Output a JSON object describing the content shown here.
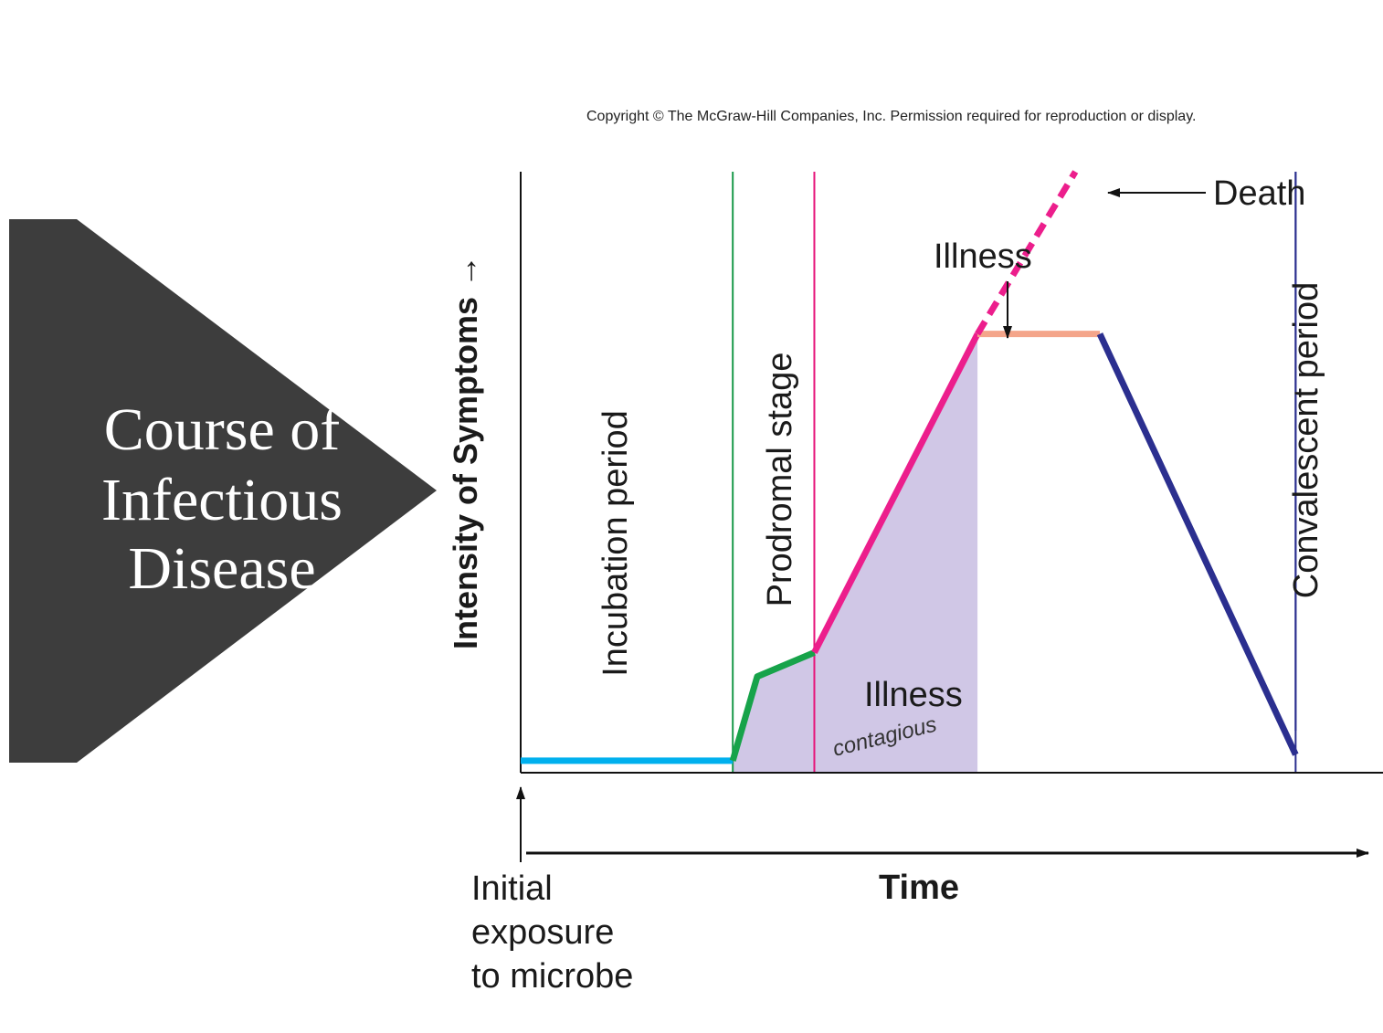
{
  "slide": {
    "title_lines": [
      "Course of",
      "Infectious",
      "Disease"
    ],
    "panel_color": "#3d3d3d"
  },
  "copyright": "Copyright © The McGraw-Hill Companies, Inc. Permission required for reproduction or display.",
  "chart_data": {
    "type": "line",
    "title": "",
    "xlabel": "Time",
    "ylabel": "Intensity of Symptoms →",
    "x_origin_label": "Initial exposure to microbe",
    "x_origin_lines": [
      "Initial",
      "exposure",
      "to microbe"
    ],
    "x_range": [
      0,
      100
    ],
    "y_range": [
      0,
      100
    ],
    "grid": false,
    "stages": [
      {
        "name": "Incubation period",
        "x_start": 0,
        "x_end": 26,
        "boundary_color": "#1ea0dc"
      },
      {
        "name": "Prodromal stage",
        "x_start": 26,
        "x_end": 36,
        "boundary_color": "#1a9a4a"
      },
      {
        "name": "Illness",
        "x_start": 36,
        "x_end": 71,
        "boundary_color": "#e6157a"
      },
      {
        "name": "Convalescent period",
        "x_start": 71,
        "x_end": 95,
        "boundary_color": "#2b2f8f"
      }
    ],
    "series": [
      {
        "name": "Incubation",
        "color": "#00b0ee",
        "points": [
          [
            0,
            2
          ],
          [
            26,
            2
          ]
        ]
      },
      {
        "name": "Prodromal",
        "color": "#17a34a",
        "points": [
          [
            26,
            2
          ],
          [
            29,
            16
          ],
          [
            36,
            20
          ]
        ]
      },
      {
        "name": "Illness rise",
        "color": "#ec1e8c",
        "points": [
          [
            36,
            20
          ],
          [
            56,
            73
          ]
        ]
      },
      {
        "name": "Illness plateau",
        "color": "#f4a58a",
        "points": [
          [
            56,
            73
          ],
          [
            71,
            73
          ]
        ]
      },
      {
        "name": "Death",
        "color": "#ec1e8c",
        "style": "dashed",
        "points": [
          [
            56,
            73
          ],
          [
            68,
            100
          ]
        ]
      },
      {
        "name": "Convalescence",
        "color": "#2b2f8f",
        "points": [
          [
            71,
            73
          ],
          [
            95,
            3
          ]
        ]
      }
    ],
    "contagious_region": {
      "x_start": 26,
      "x_end": 56,
      "color": "#d0c7e6"
    },
    "annotations": {
      "illness_top": "Illness",
      "illness_region": "Illness",
      "death": "Death",
      "handwritten": "contagious"
    }
  }
}
